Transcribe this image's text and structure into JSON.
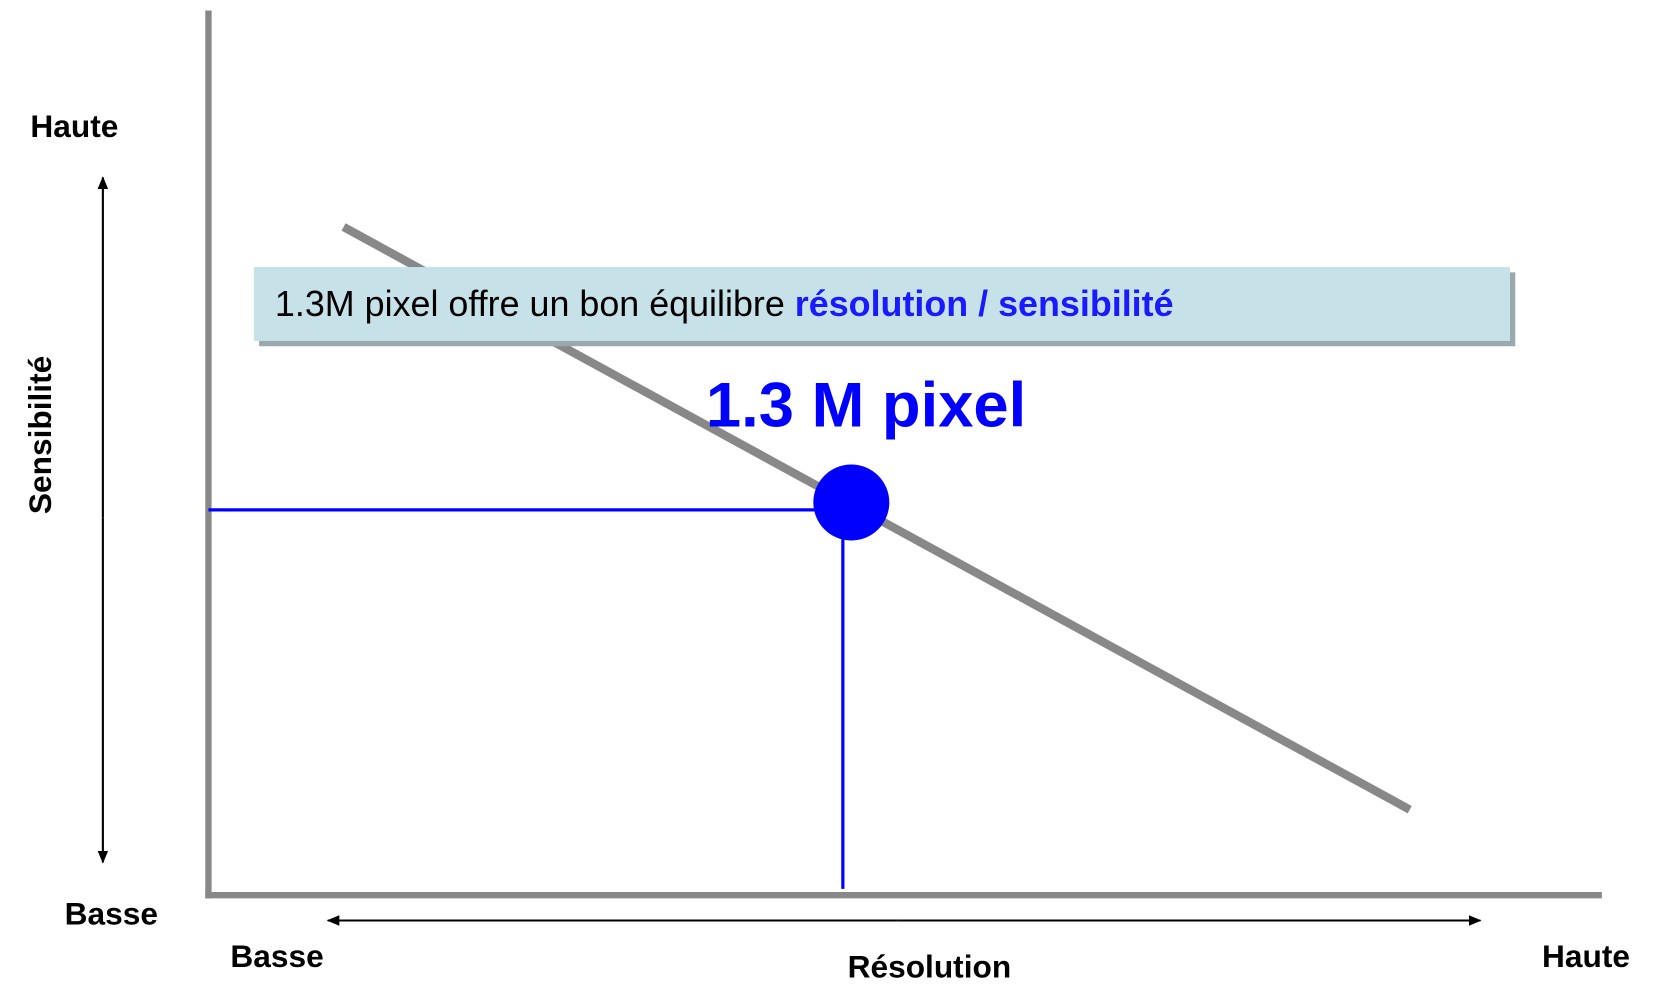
{
  "y_axis": {
    "top_label": "Haute",
    "bottom_label": "Basse",
    "title": "Sensibilité"
  },
  "x_axis": {
    "left_label": "Basse",
    "right_label": "Haute",
    "title": "Résolution"
  },
  "callout": {
    "text": "1.3M pixel offre un bon équilibre ",
    "emphasis": "résolution / sensibilité"
  },
  "point_label": "1.3 M pixel"
}
